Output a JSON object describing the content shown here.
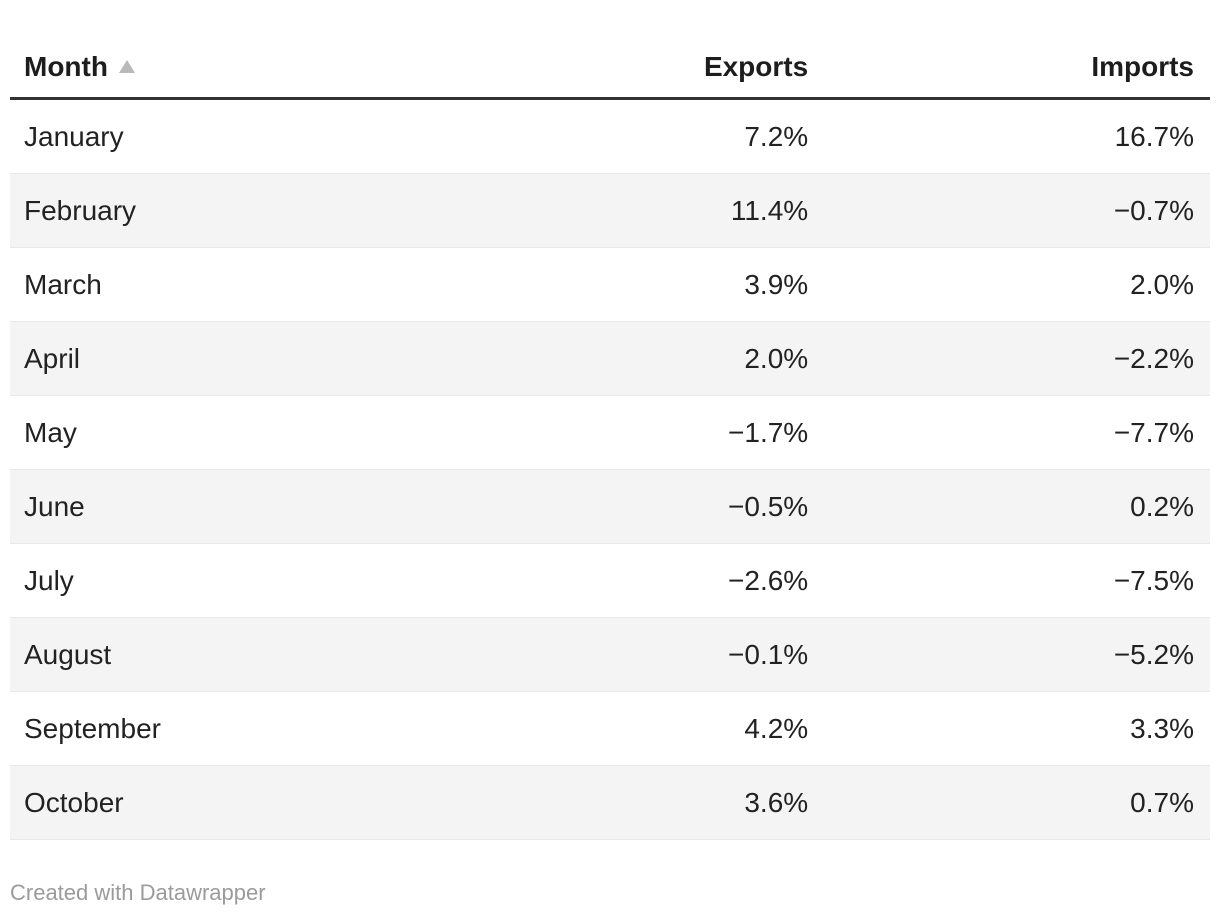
{
  "chart_data": {
    "type": "table",
    "columns": [
      "Month",
      "Exports",
      "Imports"
    ],
    "unit": "%",
    "sorted_by": "Month",
    "sort_direction": "ascending",
    "rows": [
      {
        "month": "January",
        "exports": 7.2,
        "imports": 16.7
      },
      {
        "month": "February",
        "exports": 11.4,
        "imports": -0.7
      },
      {
        "month": "March",
        "exports": 3.9,
        "imports": 2.0
      },
      {
        "month": "April",
        "exports": 2.0,
        "imports": -2.2
      },
      {
        "month": "May",
        "exports": -1.7,
        "imports": -7.7
      },
      {
        "month": "June",
        "exports": -0.5,
        "imports": 0.2
      },
      {
        "month": "July",
        "exports": -2.6,
        "imports": -7.5
      },
      {
        "month": "August",
        "exports": -0.1,
        "imports": -5.2
      },
      {
        "month": "September",
        "exports": 4.2,
        "imports": 3.3
      },
      {
        "month": "October",
        "exports": 3.6,
        "imports": 0.7
      }
    ]
  },
  "table": {
    "columns": [
      {
        "label": "Month",
        "align": "left",
        "sorted": true,
        "sort_icon": "triangle-up"
      },
      {
        "label": "Exports",
        "align": "right",
        "sorted": false
      },
      {
        "label": "Imports",
        "align": "right",
        "sorted": false
      }
    ],
    "rows": [
      {
        "month": "January",
        "exports": "7.2%",
        "imports": "16.7%"
      },
      {
        "month": "February",
        "exports": "11.4%",
        "imports": "−0.7%"
      },
      {
        "month": "March",
        "exports": "3.9%",
        "imports": "2.0%"
      },
      {
        "month": "April",
        "exports": "2.0%",
        "imports": "−2.2%"
      },
      {
        "month": "May",
        "exports": "−1.7%",
        "imports": "−7.7%"
      },
      {
        "month": "June",
        "exports": "−0.5%",
        "imports": "0.2%"
      },
      {
        "month": "July",
        "exports": "−2.6%",
        "imports": "−7.5%"
      },
      {
        "month": "August",
        "exports": "−0.1%",
        "imports": "−5.2%"
      },
      {
        "month": "September",
        "exports": "4.2%",
        "imports": "3.3%"
      },
      {
        "month": "October",
        "exports": "3.6%",
        "imports": "0.7%"
      }
    ]
  },
  "footer": {
    "attribution": "Created with Datawrapper"
  },
  "colors": {
    "text": "#222222",
    "header_text": "#1d1d1d",
    "header_rule": "#333333",
    "row_divider": "#e9e9e9",
    "row_stripe": "#f4f4f4",
    "sort_arrow": "#b9b9b9",
    "attribution_text": "#9b9b9b",
    "background": "#ffffff"
  }
}
